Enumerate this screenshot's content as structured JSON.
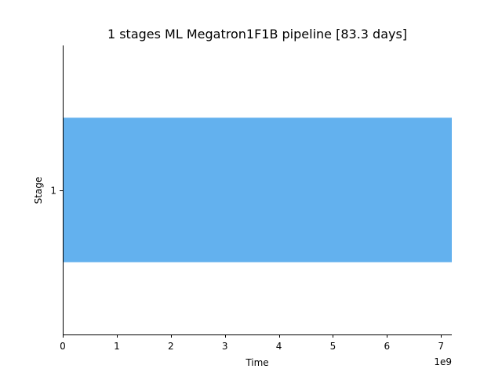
{
  "chart_data": {
    "type": "bar",
    "orientation": "horizontal",
    "title": "1 stages ML Megatron1F1B pipeline [83.3 days]",
    "xlabel": "Time",
    "ylabel": "Stage",
    "x_offset_label": "1e9",
    "xlim": [
      0,
      7.2
    ],
    "x_ticks": [
      0,
      1,
      2,
      3,
      4,
      5,
      6,
      7
    ],
    "x_tick_labels": [
      "0",
      "1",
      "2",
      "3",
      "4",
      "5",
      "6",
      "7"
    ],
    "categories": [
      "1"
    ],
    "series": [
      {
        "values": [
          [
            0,
            7.2
          ]
        ],
        "color": "#63b1ee"
      }
    ],
    "grid": false,
    "legend": "none"
  }
}
